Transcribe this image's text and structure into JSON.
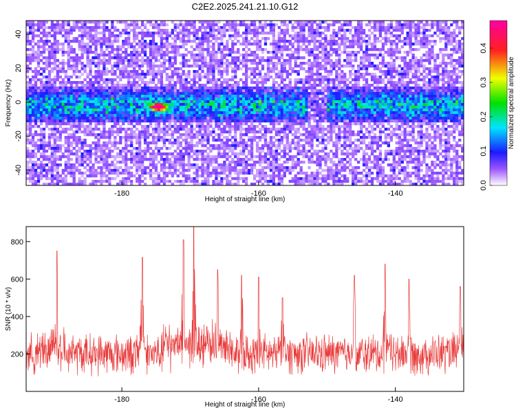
{
  "chart_data": [
    {
      "type": "heatmap",
      "title": "C2E2.2025.241.21.10.G12",
      "xlabel": "Height of straight line (km)",
      "ylabel": "Frequency (Hz)",
      "xlim": [
        -194,
        -130
      ],
      "ylim": [
        -49,
        48
      ],
      "xticks": [
        -180,
        -160,
        -140
      ],
      "yticks": [
        -40,
        -20,
        0,
        20,
        40
      ],
      "colorbar": {
        "label": "Normalized spectral amplitude",
        "range": [
          0,
          0.48
        ],
        "ticks": [
          0.0,
          0.1,
          0.2,
          0.3,
          0.4
        ],
        "tick_labels": [
          "0.0",
          "0.1",
          "0.2",
          "0.3",
          "0.4"
        ]
      },
      "signal_band": {
        "center_freq": -2,
        "half_width": 8,
        "peak_x": -174.7,
        "peak_freq": -3,
        "peak_value": 0.45
      }
    },
    {
      "type": "line",
      "xlabel": "Height of straight line (km)",
      "ylabel": "SNR (10 * v/v)",
      "xlim": [
        -194,
        -130
      ],
      "ylim": [
        0,
        880
      ],
      "xticks": [
        -180,
        -160,
        -140
      ],
      "yticks": [
        200,
        400,
        600,
        800
      ],
      "color": "#e83a3a",
      "series": [
        {
          "name": "SNR",
          "base": 200,
          "noise": 80,
          "peaks": [
            {
              "x": -189.5,
              "y": 750
            },
            {
              "x": -177.0,
              "y": 715
            },
            {
              "x": -171.0,
              "y": 810
            },
            {
              "x": -169.5,
              "y": 880
            },
            {
              "x": -166.0,
              "y": 650
            },
            {
              "x": -162.5,
              "y": 620
            },
            {
              "x": -160.0,
              "y": 610
            },
            {
              "x": -156.5,
              "y": 500
            },
            {
              "x": -146.0,
              "y": 620
            },
            {
              "x": -141.5,
              "y": 680
            },
            {
              "x": -138.0,
              "y": 600
            },
            {
              "x": -130.5,
              "y": 560
            }
          ]
        }
      ]
    }
  ]
}
